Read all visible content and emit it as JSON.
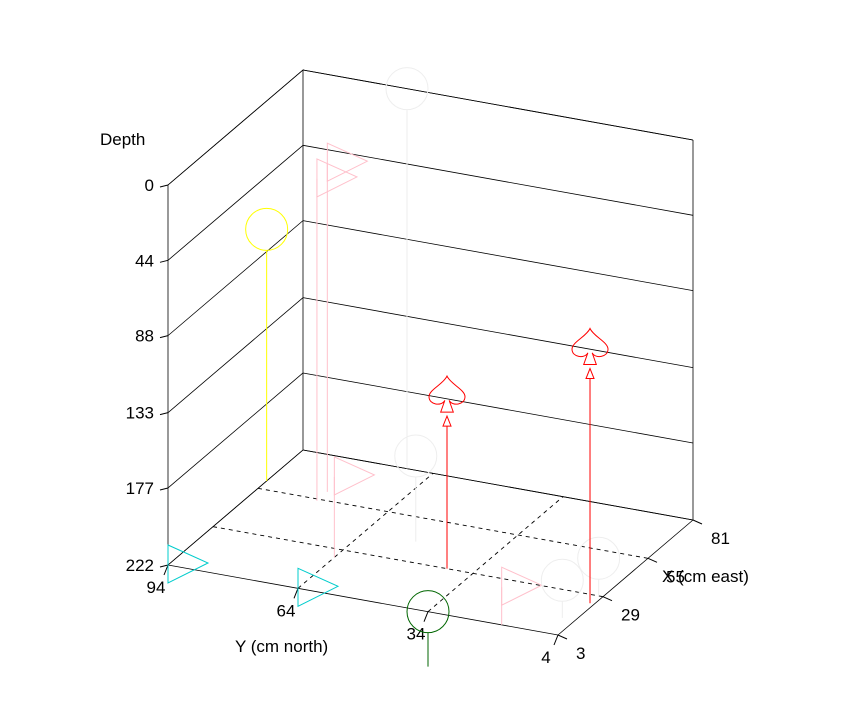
{
  "chart_data": {
    "type": "scatter3d",
    "axes": {
      "depth": {
        "label": "Depth",
        "ticks": [
          "0",
          "44",
          "88",
          "133",
          "177",
          "222"
        ]
      },
      "y": {
        "label": "Y (cm north)",
        "ticks": [
          "94",
          "64",
          "34",
          "4"
        ]
      },
      "x": {
        "label": "X (cm east)",
        "ticks": [
          "3",
          "29",
          "55",
          "81"
        ]
      }
    },
    "grid": true,
    "points": [
      {
        "x": 3,
        "y": 94,
        "depth": 222,
        "symbol": "triangle",
        "color": "#00cccc"
      },
      {
        "x": 3,
        "y": 64,
        "depth": 222,
        "symbol": "triangle",
        "color": "#00cccc"
      },
      {
        "x": 3,
        "y": 34,
        "depth": 222,
        "symbol": "circle",
        "color": "#006600"
      },
      {
        "x": 3,
        "y": 17,
        "depth": 200,
        "symbol": "triangle",
        "color": "#ffc0cb"
      },
      {
        "x": 13,
        "y": 7,
        "depth": 200,
        "symbol": "circle",
        "color": "#eeeeee"
      },
      {
        "x": 29,
        "y": 5,
        "depth": 200,
        "symbol": "circle",
        "color": "#eeeeee"
      },
      {
        "x": 29,
        "y": 40,
        "depth": 120,
        "symbol": "spade",
        "color": "#ff0000"
      },
      {
        "x": 24,
        "y": 5,
        "depth": 72,
        "symbol": "spade",
        "color": "#ff0000"
      },
      {
        "x": 24,
        "y": 64,
        "depth": 175,
        "symbol": "triangle",
        "color": "#ffc0cb"
      },
      {
        "x": 41,
        "y": 52,
        "depth": 172,
        "symbol": "circle",
        "color": "#eeeeee"
      },
      {
        "x": 60,
        "y": 94,
        "depth": 75,
        "symbol": "circle",
        "color": "#ffff00"
      },
      {
        "x": 60,
        "y": 80,
        "depth": 30,
        "symbol": "triangle",
        "color": "#ffc0cb"
      },
      {
        "x": 54,
        "y": 80,
        "depth": 34,
        "symbol": "triangle",
        "color": "#ffc0cb"
      },
      {
        "x": 81,
        "y": 70,
        "depth": 0,
        "symbol": "circle",
        "color": "#eeeeee"
      }
    ]
  }
}
